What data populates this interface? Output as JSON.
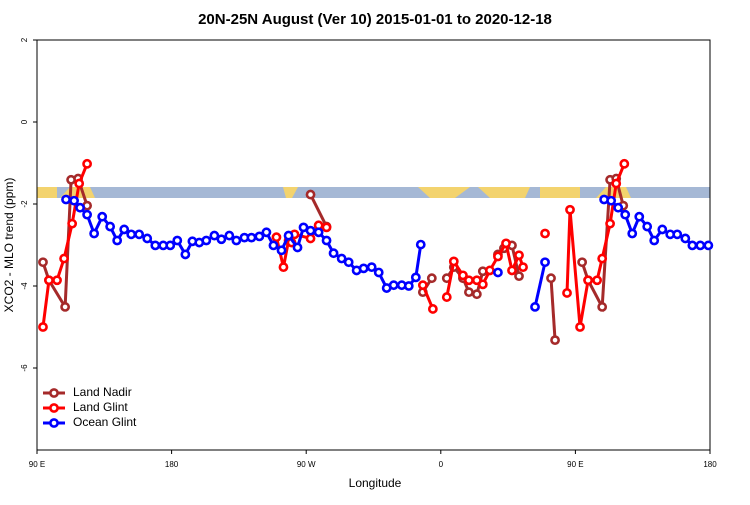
{
  "chart_data": {
    "type": "line",
    "title": "20N-25N August (Ver 10)   2015-01-01 to 2020-12-18",
    "x_label": "Longitude",
    "y_label": "XCO2 - MLO trend (ppm)",
    "xlim": [
      90,
      540
    ],
    "ylim": [
      -8,
      2
    ],
    "xticks": [
      {
        "value": 90,
        "label": "90 E"
      },
      {
        "value": 180,
        "label": "180"
      },
      {
        "value": 270,
        "label": "90 W"
      },
      {
        "value": 360,
        "label": "0"
      },
      {
        "value": 450,
        "label": "90 E"
      },
      {
        "value": 540,
        "label": "180"
      }
    ],
    "yticks": [
      -6,
      -4,
      -2,
      0,
      2
    ],
    "legend": "bottom-left",
    "series": [
      {
        "name": "Land Nadir",
        "color": "#a52a2a",
        "x": [
          94.0,
          98.0,
          108.8,
          112.8,
          117.5,
          123.5,
          null,
          272.9,
          283.6,
          null,
          348.0,
          354.0,
          null,
          364.0,
          368.7,
          374.8,
          378.8,
          384.1,
          388.1,
          null,
          398.2,
          402.2,
          407.6,
          412.3,
          null,
          433.7,
          436.4,
          null,
          454.5,
          458.5,
          467.9,
          473.2,
          477.3,
          482.0
        ],
        "values": [
          -3.42,
          -3.86,
          -4.51,
          -1.41,
          -1.38,
          -2.04,
          null,
          -1.77,
          -2.55,
          null,
          -4.15,
          -3.81,
          null,
          -3.81,
          -3.54,
          -3.81,
          -4.15,
          -4.2,
          -3.64,
          null,
          -3.23,
          -3.08,
          -3.01,
          -3.76,
          null,
          -3.81,
          -5.32,
          null,
          -3.42,
          -3.86,
          -4.51,
          -1.41,
          -1.38,
          -2.04
        ]
      },
      {
        "name": "Land Glint",
        "color": "#ff0000",
        "x": [
          94.0,
          98.0,
          103.4,
          108.1,
          113.5,
          118.2,
          123.5,
          null,
          250.1,
          254.8,
          258.2,
          260.2,
          262.2,
          272.9,
          278.3,
          283.6,
          null,
          348.0,
          354.7,
          null,
          364.0,
          368.7,
          374.8,
          378.8,
          384.1,
          388.1,
          392.8,
          398.2,
          403.6,
          407.6,
          412.3,
          415.0,
          null,
          429.7,
          null,
          444.4,
          446.4,
          453.1,
          458.5,
          464.5,
          467.9,
          473.2,
          477.3,
          482.7
        ],
        "values": [
          -5.0,
          -3.86,
          -3.86,
          -3.33,
          -2.48,
          -1.5,
          -1.02,
          null,
          -2.81,
          -3.54,
          -2.89,
          -2.94,
          -2.74,
          -2.84,
          -2.52,
          -2.57,
          null,
          -3.98,
          -4.56,
          null,
          -4.27,
          -3.4,
          -3.74,
          -3.86,
          -3.86,
          -3.96,
          -3.62,
          -3.28,
          -2.96,
          -3.62,
          -3.25,
          -3.54,
          null,
          -2.72,
          null,
          -4.17,
          -2.14,
          -5.0,
          -3.86,
          -3.86,
          -3.33,
          -2.48,
          -1.5,
          -1.02
        ]
      },
      {
        "name": "Ocean Glint",
        "color": "#0000ff",
        "x": [
          109.4,
          114.8,
          118.8,
          123.5,
          128.2,
          133.6,
          138.9,
          143.6,
          148.3,
          153.0,
          158.3,
          163.7,
          169.1,
          174.4,
          179.1,
          183.8,
          189.2,
          193.9,
          198.5,
          203.2,
          208.6,
          213.3,
          218.6,
          223.3,
          228.7,
          233.4,
          238.7,
          243.4,
          248.1,
          253.5,
          258.2,
          264.2,
          268.2,
          272.9,
          278.3,
          283.6,
          288.3,
          293.7,
          298.4,
          303.7,
          308.4,
          313.8,
          318.5,
          323.8,
          328.5,
          333.9,
          338.6,
          343.3,
          346.6,
          null,
          398.2,
          null,
          423.0,
          429.7,
          null,
          469.2,
          473.9,
          478.6,
          483.3,
          488.0,
          492.7,
          498.0,
          502.7,
          508.1,
          513.4,
          518.1,
          523.5,
          528.2,
          533.5,
          538.9
        ],
        "values": [
          -1.89,
          -1.92,
          -2.09,
          -2.26,
          -2.72,
          -2.31,
          -2.55,
          -2.89,
          -2.62,
          -2.74,
          -2.74,
          -2.84,
          -3.01,
          -3.01,
          -3.01,
          -2.89,
          -3.23,
          -2.91,
          -2.94,
          -2.89,
          -2.77,
          -2.86,
          -2.77,
          -2.89,
          -2.82,
          -2.82,
          -2.79,
          -2.69,
          -3.01,
          -3.13,
          -2.77,
          -3.06,
          -2.57,
          -2.65,
          -2.69,
          -2.89,
          -3.2,
          -3.33,
          -3.42,
          -3.62,
          -3.57,
          -3.54,
          -3.67,
          -4.05,
          -3.98,
          -3.98,
          -4.0,
          -3.79,
          -2.99,
          null,
          -3.67,
          null,
          -4.51,
          -3.42,
          null,
          -1.89,
          -1.92,
          -2.09,
          -2.26,
          -2.72,
          -2.31,
          -2.55,
          -2.89,
          -2.62,
          -2.74,
          -2.74,
          -2.84,
          -3.01,
          -3.01,
          -3.01
        ]
      }
    ]
  }
}
